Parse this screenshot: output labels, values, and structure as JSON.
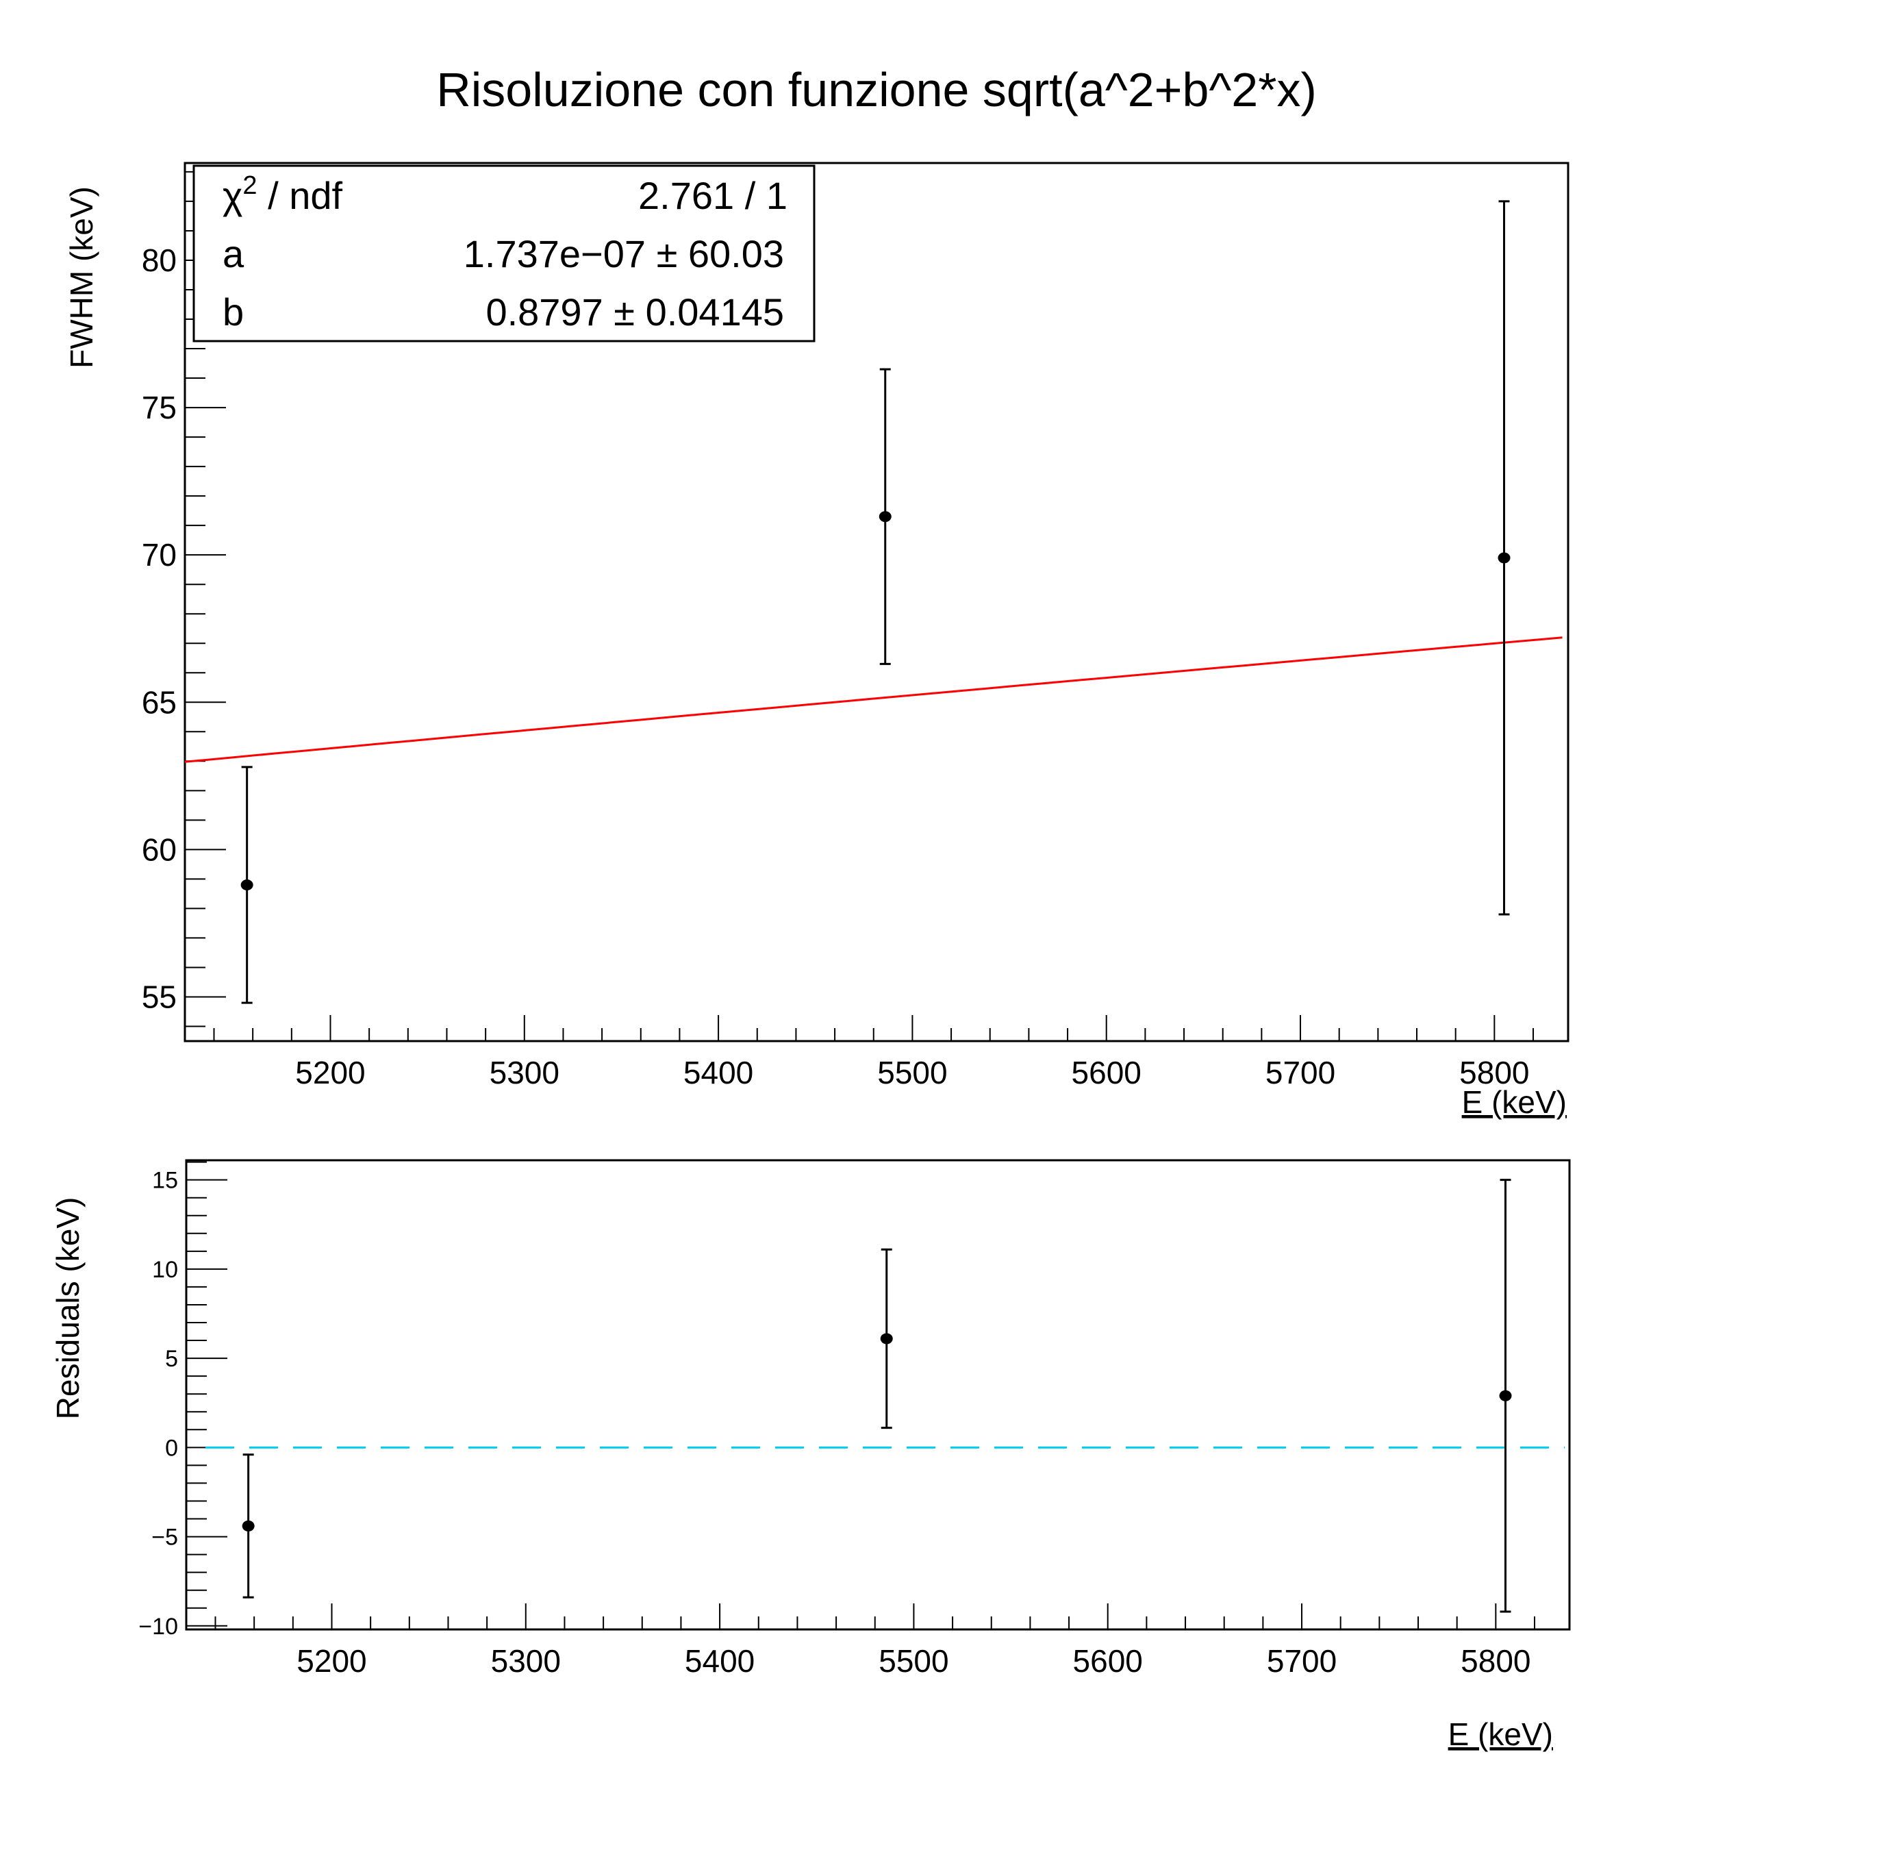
{
  "title": "Risoluzione con funzione sqrt(a^2+b^2*x)",
  "colors": {
    "fit_line": "#ff0000",
    "zero_line": "#00ccee",
    "points": "#000000",
    "frame": "#000000"
  },
  "stats_box": {
    "rows": [
      {
        "label": "χ² / ndf",
        "value": "2.761 / 1"
      },
      {
        "label": "a",
        "value": "1.737e−07 ± 60.03"
      },
      {
        "label": "b",
        "value": "0.8797 ± 0.04145"
      }
    ]
  },
  "chart_data": [
    {
      "type": "scatter",
      "title": "Risoluzione con funzione sqrt(a^2+b^2*x)",
      "xlabel": "E (keV)",
      "ylabel": "FWHM (keV)",
      "xlim": [
        5125,
        5838
      ],
      "ylim": [
        53.5,
        83.3
      ],
      "x_ticks": [
        5200,
        5300,
        5400,
        5500,
        5600,
        5700,
        5800
      ],
      "y_ticks": [
        55,
        60,
        65,
        70,
        75,
        80
      ],
      "grid": false,
      "legend": "top-left stats box",
      "series": [
        {
          "points": [
            {
              "x": 5157,
              "y": 58.8,
              "yerr_low": 4.0,
              "yerr_high": 4.0
            },
            {
              "x": 5486,
              "y": 71.3,
              "yerr_low": 5.0,
              "yerr_high": 5.0
            },
            {
              "x": 5805,
              "y": 69.9,
              "yerr_low": 12.1,
              "yerr_high": 12.1
            }
          ]
        }
      ],
      "fit_curve": {
        "function": "sqrt(a^2+b^2*x)",
        "a": 1.737e-07,
        "b": 0.8797,
        "x_range": [
          5125,
          5835
        ]
      }
    },
    {
      "type": "scatter",
      "title": "",
      "xlabel": "E (keV)",
      "ylabel": "Residuals (keV)",
      "xlim": [
        5125,
        5838
      ],
      "ylim": [
        -10.2,
        16.1
      ],
      "x_ticks": [
        5200,
        5300,
        5400,
        5500,
        5600,
        5700,
        5800
      ],
      "y_ticks": [
        -10,
        -5,
        0,
        5,
        10,
        15
      ],
      "y_tick_labels": [
        "−10",
        "−5",
        "0",
        "5",
        "10",
        "15"
      ],
      "grid": false,
      "series": [
        {
          "points": [
            {
              "x": 5157,
              "y": -4.4,
              "yerr_low": 4.0,
              "yerr_high": 4.0
            },
            {
              "x": 5486,
              "y": 6.1,
              "yerr_low": 5.0,
              "yerr_high": 5.0
            },
            {
              "x": 5805,
              "y": 2.9,
              "yerr_low": 12.1,
              "yerr_high": 12.1
            }
          ]
        }
      ],
      "reference_line": {
        "y": 0,
        "style": "dashed"
      }
    }
  ]
}
